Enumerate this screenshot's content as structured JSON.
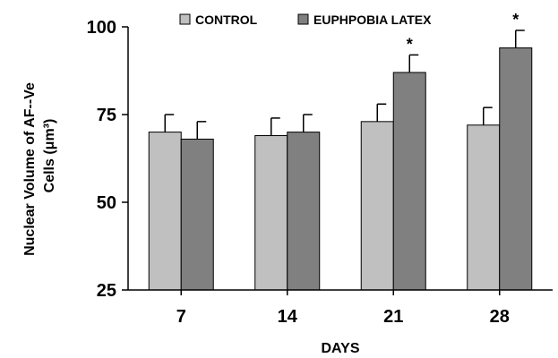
{
  "chart_data": {
    "type": "bar",
    "categories": [
      "7",
      "14",
      "21",
      "28"
    ],
    "series": [
      {
        "name": "CONTROL",
        "values": [
          70,
          69,
          73,
          72
        ],
        "errors": [
          5,
          5,
          5,
          5
        ],
        "color": "#c0c0c0"
      },
      {
        "name": "EUPHPOBIA LATEX",
        "values": [
          68,
          70,
          87,
          94
        ],
        "errors": [
          5,
          5,
          5,
          5
        ],
        "color": "#808080"
      }
    ],
    "significance": [
      {
        "category": "21",
        "series": "EUPHPOBIA LATEX",
        "label": "*"
      },
      {
        "category": "28",
        "series": "EUPHPOBIA LATEX",
        "label": "*"
      }
    ],
    "title": "",
    "xlabel": "DAYS",
    "ylabel_lines": [
      "Nuclear Volume of AF--Ve",
      "Cells (μm³)"
    ],
    "ylim": [
      25,
      100
    ],
    "yticks": [
      25,
      50,
      75,
      100
    ],
    "grid": false,
    "legend_position": "top"
  }
}
